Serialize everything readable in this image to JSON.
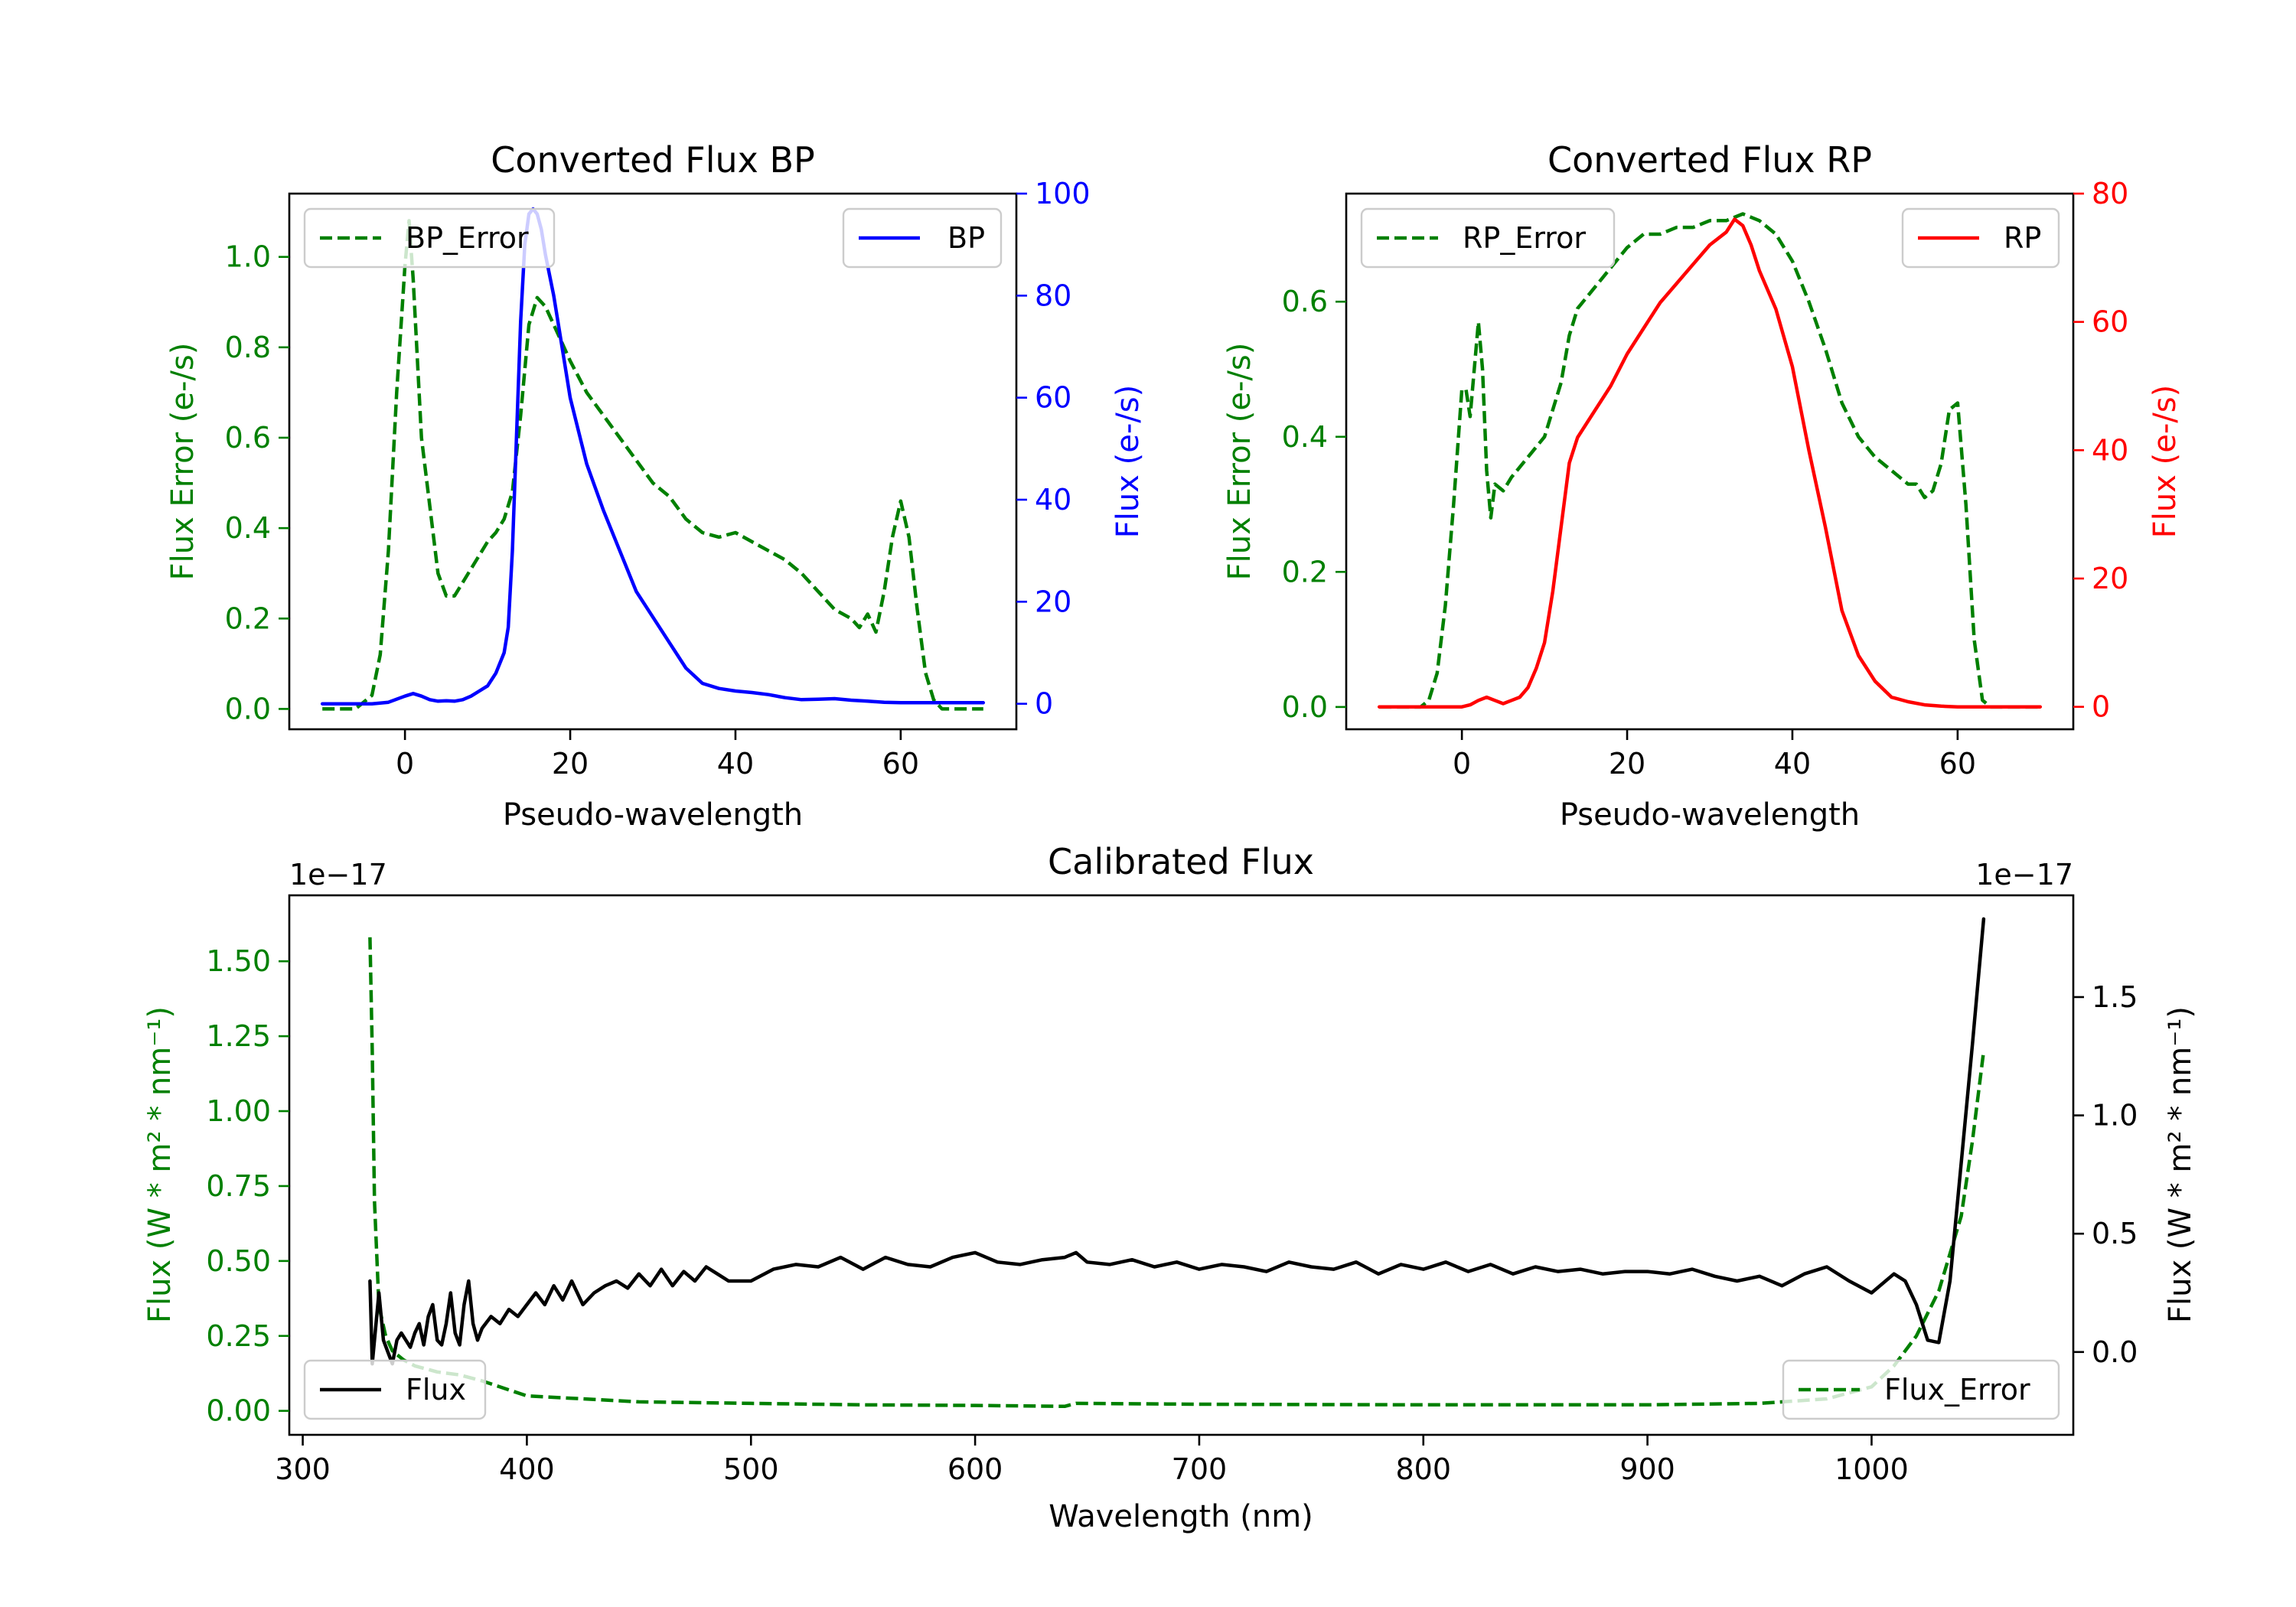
{
  "chart_data": [
    {
      "id": "bp",
      "type": "line",
      "title": "Converted Flux BP",
      "xlabel": "Pseudo-wavelength",
      "ylabel_left": "Flux Error (e-/s)",
      "ylabel_right": "Flux (e-/s)",
      "xlim": [
        -14,
        74
      ],
      "ylim_left": [
        -0.045,
        1.14
      ],
      "ylim_right": [
        -5,
        100
      ],
      "xticks": [
        0,
        20,
        40,
        60
      ],
      "yticks_left": [
        0.0,
        0.2,
        0.4,
        0.6,
        0.8,
        1.0
      ],
      "yticks_right": [
        0,
        20,
        40,
        60,
        80,
        100
      ],
      "colors": {
        "left_axis": "#008000",
        "right_axis": "#0000ff"
      },
      "series": [
        {
          "name": "BP_Error",
          "axis": "left",
          "style": "dashed",
          "color": "#008000",
          "x": [
            -10,
            -6,
            -4,
            -3,
            -2,
            -1,
            0,
            0.5,
            1,
            2,
            3,
            4,
            5,
            6,
            7,
            8,
            9,
            10,
            11,
            12,
            13,
            14,
            15,
            16,
            17,
            18,
            19,
            20,
            22,
            24,
            26,
            28,
            30,
            32,
            34,
            36,
            38,
            40,
            42,
            44,
            46,
            48,
            50,
            52,
            54,
            55,
            56,
            57,
            58,
            59,
            60,
            61,
            62,
            63,
            64,
            65,
            66,
            68,
            70
          ],
          "values": [
            0.0,
            0.0,
            0.03,
            0.12,
            0.35,
            0.7,
            0.98,
            1.08,
            0.95,
            0.6,
            0.45,
            0.3,
            0.25,
            0.25,
            0.28,
            0.31,
            0.34,
            0.37,
            0.39,
            0.42,
            0.48,
            0.65,
            0.85,
            0.91,
            0.89,
            0.85,
            0.81,
            0.77,
            0.7,
            0.65,
            0.6,
            0.55,
            0.5,
            0.47,
            0.42,
            0.39,
            0.38,
            0.39,
            0.37,
            0.35,
            0.33,
            0.3,
            0.26,
            0.22,
            0.2,
            0.18,
            0.21,
            0.17,
            0.26,
            0.38,
            0.46,
            0.38,
            0.22,
            0.08,
            0.02,
            0.0,
            0.0,
            0.0,
            0.0
          ]
        },
        {
          "name": "BP",
          "axis": "right",
          "style": "solid",
          "color": "#0000ff",
          "x": [
            -10,
            -4,
            -2,
            0,
            1,
            2,
            3,
            4,
            5,
            6,
            7,
            8,
            9,
            10,
            11,
            12,
            12.5,
            13,
            14,
            14.5,
            15,
            15.5,
            16,
            16.5,
            17,
            18,
            19,
            20,
            22,
            24,
            26,
            28,
            30,
            32,
            34,
            36,
            38,
            40,
            42,
            44,
            46,
            48,
            50,
            52,
            54,
            56,
            58,
            60,
            62,
            64,
            66,
            68,
            70
          ],
          "values": [
            0,
            0,
            0.3,
            1.5,
            2.0,
            1.5,
            0.8,
            0.5,
            0.6,
            0.5,
            0.8,
            1.5,
            2.5,
            3.5,
            6,
            10,
            15,
            30,
            75,
            90,
            96,
            97,
            96,
            93,
            88,
            80,
            70,
            60,
            47,
            38,
            30,
            22,
            17,
            12,
            7,
            4,
            3,
            2.5,
            2.2,
            1.8,
            1.2,
            0.8,
            0.9,
            1.0,
            0.7,
            0.5,
            0.3,
            0.2,
            0.2,
            0.2,
            0.2,
            0.2,
            0.2
          ]
        }
      ]
    },
    {
      "id": "rp",
      "type": "line",
      "title": "Converted Flux RP",
      "xlabel": "Pseudo-wavelength",
      "ylabel_left": "Flux Error (e-/s)",
      "ylabel_right": "Flux (e-/s)",
      "xlim": [
        -14,
        74
      ],
      "ylim_left": [
        -0.033,
        0.76
      ],
      "ylim_right": [
        -3.5,
        80
      ],
      "xticks": [
        0,
        20,
        40,
        60
      ],
      "yticks_left": [
        0.0,
        0.2,
        0.4,
        0.6
      ],
      "yticks_right": [
        0,
        20,
        40,
        60,
        80
      ],
      "colors": {
        "left_axis": "#008000",
        "right_axis": "#ff0000"
      },
      "series": [
        {
          "name": "RP_Error",
          "axis": "left",
          "style": "dashed",
          "color": "#008000",
          "x": [
            -10,
            -5,
            -4,
            -3,
            -2,
            -1,
            0,
            0.5,
            1,
            1.5,
            2,
            2.5,
            3,
            3.5,
            4,
            5,
            6,
            8,
            10,
            12,
            13,
            14,
            16,
            18,
            20,
            22,
            24,
            26,
            28,
            30,
            32,
            34,
            36,
            38,
            40,
            42,
            44,
            46,
            48,
            50,
            52,
            54,
            55,
            56,
            57,
            58,
            59,
            60,
            61,
            62,
            63,
            64,
            66,
            68,
            70
          ],
          "values": [
            0.0,
            0.0,
            0.01,
            0.05,
            0.15,
            0.3,
            0.47,
            0.47,
            0.43,
            0.5,
            0.57,
            0.5,
            0.35,
            0.28,
            0.33,
            0.32,
            0.34,
            0.37,
            0.4,
            0.48,
            0.55,
            0.59,
            0.62,
            0.65,
            0.68,
            0.7,
            0.7,
            0.71,
            0.71,
            0.72,
            0.72,
            0.73,
            0.72,
            0.7,
            0.66,
            0.6,
            0.53,
            0.45,
            0.4,
            0.37,
            0.35,
            0.33,
            0.33,
            0.31,
            0.32,
            0.36,
            0.44,
            0.45,
            0.3,
            0.1,
            0.01,
            0.0,
            0.0,
            0.0,
            0.0
          ]
        },
        {
          "name": "RP",
          "axis": "right",
          "style": "solid",
          "color": "#ff0000",
          "x": [
            -10,
            -2,
            0,
            1,
            2,
            3,
            4,
            5,
            6,
            7,
            8,
            9,
            10,
            11,
            12,
            13,
            14,
            16,
            18,
            20,
            22,
            24,
            26,
            28,
            30,
            32,
            33,
            34,
            35,
            36,
            38,
            40,
            42,
            44,
            46,
            48,
            50,
            52,
            54,
            56,
            58,
            60,
            62,
            64,
            66,
            68,
            70
          ],
          "values": [
            0,
            0,
            0,
            0.3,
            1.0,
            1.5,
            1.0,
            0.5,
            1.0,
            1.5,
            3.0,
            6,
            10,
            18,
            28,
            38,
            42,
            46,
            50,
            55,
            59,
            63,
            66,
            69,
            72,
            74,
            76,
            75,
            72,
            68,
            62,
            53,
            40,
            28,
            15,
            8,
            4,
            1.5,
            0.8,
            0.3,
            0.1,
            0.0,
            0.0,
            0.0,
            0.0,
            0.0,
            0.0
          ]
        }
      ]
    },
    {
      "id": "calibrated",
      "type": "line",
      "title": "Calibrated Flux",
      "xlabel": "Wavelength (nm)",
      "ylabel_left": "Flux (W * m² * nm⁻¹)",
      "ylabel_right": "Flux (W * m² * nm⁻¹)",
      "offset_left": "1e−17",
      "offset_right": "1e−17",
      "xlim": [
        294,
        1090
      ],
      "ylim_left": [
        -0.08,
        1.72
      ],
      "ylim_right": [
        -0.35,
        1.93
      ],
      "xticks": [
        300,
        400,
        500,
        600,
        700,
        800,
        900,
        1000
      ],
      "yticks_left": [
        0.0,
        0.25,
        0.5,
        0.75,
        1.0,
        1.25,
        1.5
      ],
      "yticks_right": [
        0.0,
        0.5,
        1.0,
        1.5
      ],
      "yticklabels_left": [
        "0.00",
        "0.25",
        "0.50",
        "0.75",
        "1.00",
        "1.25",
        "1.50"
      ],
      "yticklabels_right": [
        "0.0",
        "0.5",
        "1.0",
        "1.5"
      ],
      "colors": {
        "left_axis": "#008000",
        "right_axis": "#000000"
      },
      "series": [
        {
          "name": "Flux_Error",
          "axis": "left",
          "style": "dashed",
          "color": "#008000",
          "x": [
            330,
            331,
            332,
            334,
            337,
            340,
            345,
            350,
            360,
            370,
            380,
            400,
            450,
            500,
            550,
            600,
            640,
            645,
            700,
            800,
            900,
            950,
            980,
            1000,
            1010,
            1020,
            1030,
            1040,
            1045,
            1050
          ],
          "values": [
            1.58,
            1.2,
            0.7,
            0.35,
            0.25,
            0.2,
            0.17,
            0.15,
            0.13,
            0.12,
            0.1,
            0.05,
            0.03,
            0.025,
            0.02,
            0.018,
            0.015,
            0.025,
            0.022,
            0.02,
            0.02,
            0.025,
            0.04,
            0.08,
            0.15,
            0.25,
            0.4,
            0.65,
            0.9,
            1.2
          ]
        },
        {
          "name": "Flux",
          "axis": "right",
          "style": "solid",
          "color": "#000000",
          "x": [
            330,
            331,
            332,
            334,
            336,
            338,
            340,
            342,
            344,
            346,
            348,
            350,
            352,
            354,
            356,
            358,
            360,
            362,
            364,
            366,
            368,
            370,
            372,
            374,
            376,
            378,
            380,
            384,
            388,
            392,
            396,
            400,
            404,
            408,
            412,
            416,
            420,
            425,
            430,
            435,
            440,
            445,
            450,
            455,
            460,
            465,
            470,
            475,
            480,
            485,
            490,
            500,
            510,
            520,
            530,
            540,
            550,
            560,
            570,
            580,
            590,
            600,
            610,
            620,
            630,
            640,
            645,
            650,
            660,
            670,
            680,
            690,
            700,
            710,
            720,
            730,
            740,
            750,
            760,
            770,
            780,
            790,
            800,
            810,
            820,
            830,
            840,
            850,
            860,
            870,
            880,
            890,
            900,
            910,
            920,
            930,
            940,
            950,
            960,
            970,
            980,
            990,
            1000,
            1010,
            1015,
            1020,
            1025,
            1030,
            1035,
            1040,
            1045,
            1050
          ],
          "values": [
            0.3,
            -0.05,
            0.05,
            0.25,
            0.05,
            0.0,
            -0.05,
            0.05,
            0.08,
            0.05,
            0.02,
            0.08,
            0.12,
            0.03,
            0.15,
            0.2,
            0.05,
            0.03,
            0.12,
            0.25,
            0.08,
            0.03,
            0.2,
            0.3,
            0.12,
            0.05,
            0.1,
            0.15,
            0.12,
            0.18,
            0.15,
            0.2,
            0.25,
            0.2,
            0.28,
            0.22,
            0.3,
            0.2,
            0.25,
            0.28,
            0.3,
            0.27,
            0.33,
            0.28,
            0.35,
            0.28,
            0.34,
            0.3,
            0.36,
            0.33,
            0.3,
            0.3,
            0.35,
            0.37,
            0.36,
            0.4,
            0.35,
            0.4,
            0.37,
            0.36,
            0.4,
            0.42,
            0.38,
            0.37,
            0.39,
            0.4,
            0.42,
            0.38,
            0.37,
            0.39,
            0.36,
            0.38,
            0.35,
            0.37,
            0.36,
            0.34,
            0.38,
            0.36,
            0.35,
            0.38,
            0.33,
            0.37,
            0.35,
            0.38,
            0.34,
            0.37,
            0.33,
            0.36,
            0.34,
            0.35,
            0.33,
            0.34,
            0.34,
            0.33,
            0.35,
            0.32,
            0.3,
            0.32,
            0.28,
            0.33,
            0.36,
            0.3,
            0.25,
            0.33,
            0.3,
            0.2,
            0.05,
            0.04,
            0.3,
            0.8,
            1.3,
            1.83
          ]
        }
      ]
    }
  ],
  "legends": {
    "bp_error": "BP_Error",
    "bp": "BP",
    "rp_error": "RP_Error",
    "rp": "RP",
    "flux": "Flux",
    "flux_error": "Flux_Error"
  }
}
